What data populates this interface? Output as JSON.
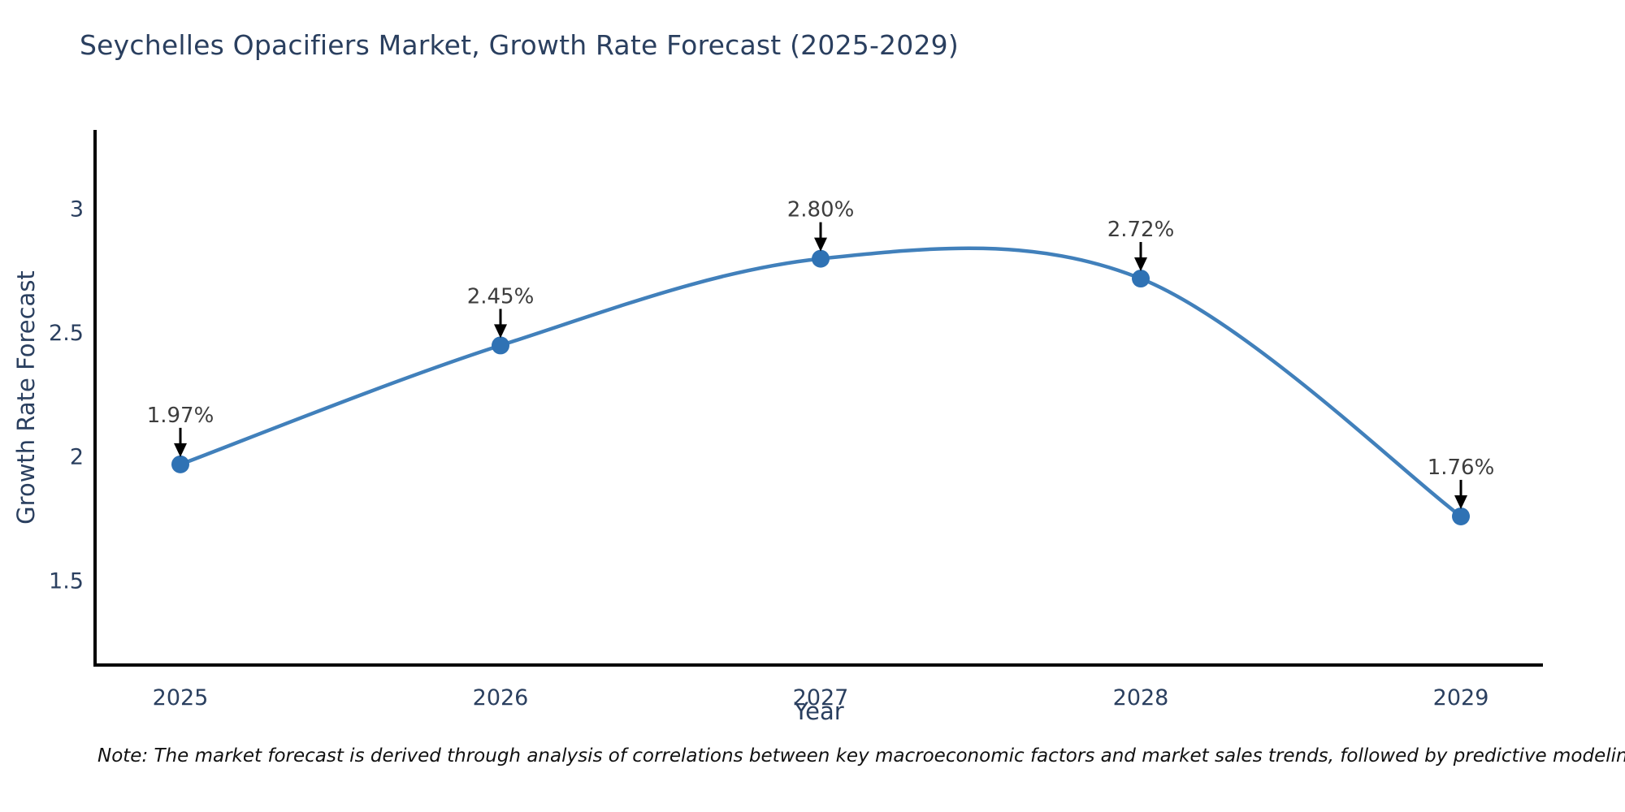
{
  "title": "Seychelles Opacifiers Market, Growth Rate Forecast (2025-2029)",
  "note": "Note: The market forecast is derived through analysis of correlations between key macroeconomic factors and market sales trends, followed by predictive modeling to project future sales",
  "chart_data": {
    "type": "line",
    "title": "Seychelles Opacifiers Market, Growth Rate Forecast (2025-2029)",
    "xlabel": "Year",
    "ylabel": "Growth Rate Forecast",
    "x": [
      2025,
      2026,
      2027,
      2028,
      2029
    ],
    "values": [
      1.97,
      2.45,
      2.8,
      2.72,
      1.76
    ],
    "point_labels": [
      "1.97%",
      "2.45%",
      "2.80%",
      "2.72%",
      "1.76%"
    ],
    "xtick_labels": [
      "2025",
      "2026",
      "2027",
      "2028",
      "2029"
    ],
    "yticks": [
      1.5,
      2,
      2.5,
      3
    ],
    "ytick_labels": [
      "1.5",
      "2",
      "2.5",
      "3"
    ],
    "xlim": [
      2024.7335,
      2029.2563
    ],
    "ylim": [
      1.16,
      3.32
    ],
    "grid": false,
    "legend": false,
    "annotation_style": "value labels above points with black down arrows",
    "colors": {
      "line": "#4180bb",
      "marker": "#2f72b4",
      "title": "#2a3f5f",
      "axis_title": "#2a3f5f",
      "tick_label": "#2a3f5f",
      "annotation_text": "#3d3d3d",
      "annotation_arrow": "#000000",
      "spine": "#000000",
      "background": "#ffffff"
    }
  }
}
